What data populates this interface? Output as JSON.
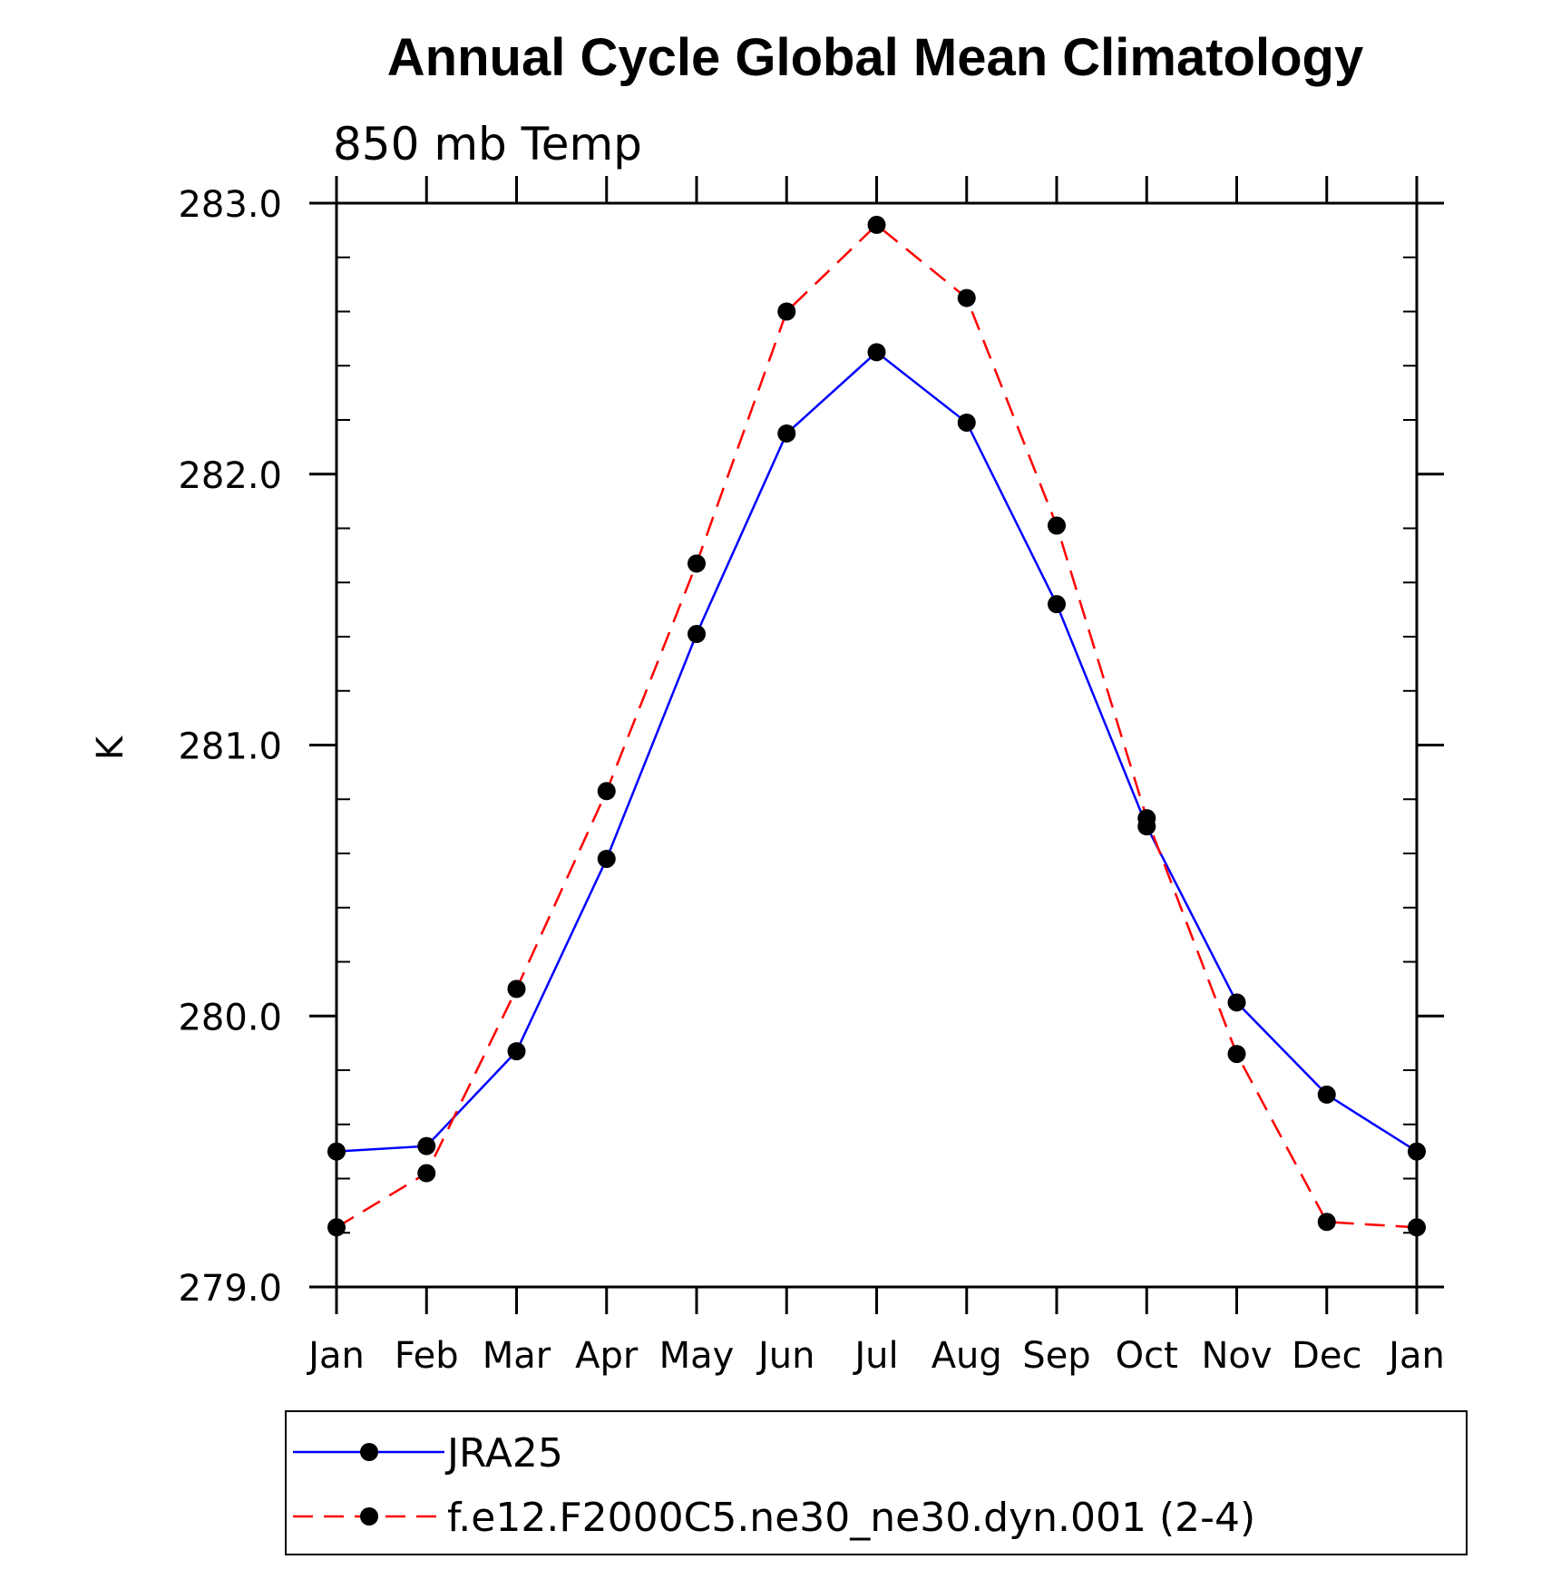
{
  "chart_data": {
    "type": "line",
    "title": "Annual Cycle Global Mean Climatology",
    "subtitle": "850 mb Temp",
    "xlabel": "",
    "ylabel": "K",
    "categories": [
      "Jan",
      "Feb",
      "Mar",
      "Apr",
      "May",
      "Jun",
      "Jul",
      "Aug",
      "Sep",
      "Oct",
      "Nov",
      "Dec",
      "Jan"
    ],
    "ylim": [
      279.0,
      283.0
    ],
    "y_ticks": [
      279.0,
      280.0,
      281.0,
      282.0,
      283.0
    ],
    "y_tick_labels": [
      "279.0",
      "280.0",
      "281.0",
      "282.0",
      "283.0"
    ],
    "y_minor_step": 0.2,
    "grid": false,
    "legend_position": "bottom",
    "series": [
      {
        "name": "JRA25",
        "color": "#0000ff",
        "line_style": "solid",
        "marker": "filled-circle",
        "values": [
          279.5,
          279.52,
          279.87,
          280.58,
          281.41,
          282.15,
          282.45,
          282.19,
          281.52,
          280.7,
          280.05,
          279.71,
          279.5
        ]
      },
      {
        "name": "f.e12.F2000C5.ne30_ne30.dyn.001 (2-4)",
        "color": "#ff0000",
        "line_style": "dashed",
        "marker": "filled-circle",
        "values": [
          279.22,
          279.42,
          280.1,
          280.83,
          281.67,
          282.6,
          282.92,
          282.65,
          281.81,
          280.73,
          279.86,
          279.24,
          279.22
        ]
      }
    ]
  }
}
